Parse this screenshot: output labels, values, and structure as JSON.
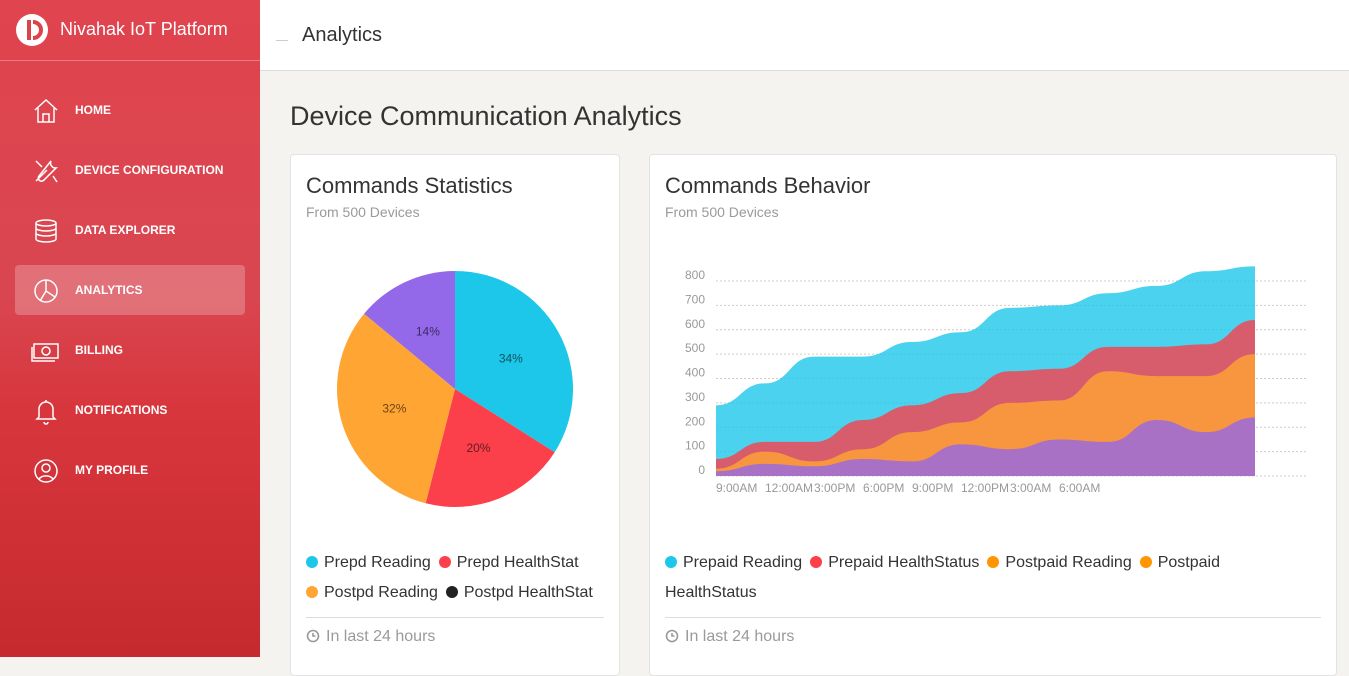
{
  "sidebar": {
    "brand": "Nivahak IoT Platform",
    "nav": [
      "HOME",
      "DEVICE CONFIGURATION",
      "DATA EXPLORER",
      "ANALYTICS",
      "BILLING",
      "NOTIFICATIONS",
      "MY PROFILE"
    ],
    "active": 3
  },
  "header": {
    "title": "Analytics"
  },
  "page_title": "Device Communication Analytics",
  "chart_data": [
    {
      "type": "pie",
      "title": "Commands Statistics",
      "subtitle": "From 500 Devices",
      "categories": [
        "Prepd Reading",
        "Prepd HealthStat",
        "Postpd Reading",
        "Postpd HealthStat"
      ],
      "values": [
        34,
        20,
        32,
        14
      ],
      "value_labels": [
        "34%",
        "20%",
        "32%",
        "14%"
      ],
      "colors": [
        "#1dc7ea",
        "#fb404b",
        "#ffa534",
        "#9368e9"
      ],
      "legend_colors": [
        "#1dc7ea",
        "#fb404b",
        "#ffa534",
        "#222222"
      ],
      "footer": "In last 24 hours"
    },
    {
      "type": "area",
      "title": "Commands Behavior",
      "subtitle": "From 500 Devices",
      "categories": [
        "9:00AM",
        "12:00AM",
        "3:00PM",
        "6:00PM",
        "9:00PM",
        "12:00PM",
        "3:00AM",
        "6:00AM",
        null,
        null,
        null,
        null
      ],
      "series": [
        {
          "name": "Prepaid Reading",
          "color": "#1dc7ea",
          "legend_color": "#1dc7ea",
          "values": [
            290,
            380,
            490,
            490,
            550,
            590,
            690,
            700,
            750,
            780,
            840,
            860
          ]
        },
        {
          "name": "Prepaid HealthStatus",
          "color": "#fb404b",
          "legend_color": "#fb404b",
          "values": [
            70,
            140,
            140,
            230,
            290,
            340,
            430,
            440,
            530,
            530,
            540,
            640
          ]
        },
        {
          "name": "Postpaid Reading",
          "color": "#ffa534",
          "legend_color": "#ff9500",
          "values": [
            30,
            100,
            60,
            110,
            180,
            220,
            300,
            310,
            430,
            410,
            410,
            500
          ]
        },
        {
          "name": "Postpaid HealthStatus",
          "color": "#9368e9",
          "legend_color": "#ff9500",
          "values": [
            20,
            50,
            40,
            70,
            60,
            130,
            110,
            150,
            140,
            230,
            180,
            240
          ]
        }
      ],
      "ylim": [
        0,
        800
      ],
      "yticks": [
        0,
        100,
        200,
        300,
        400,
        500,
        600,
        700,
        800
      ],
      "grid": true,
      "footer": "In last 24 hours"
    }
  ]
}
